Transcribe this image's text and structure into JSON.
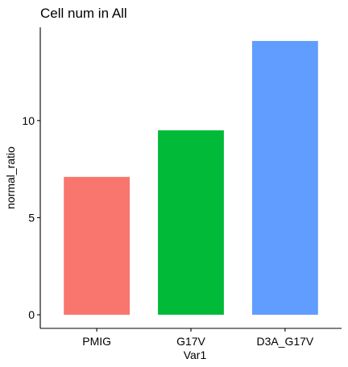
{
  "chart_data": {
    "type": "bar",
    "title": "Cell num in All",
    "xlabel": "Var1",
    "ylabel": "normal_ratio",
    "categories": [
      "PMIG",
      "G17V",
      "D3A_G17V"
    ],
    "values": [
      7.1,
      9.5,
      14.1
    ],
    "colors": [
      "#F8766D",
      "#00BA38",
      "#619CFF"
    ],
    "yticks": [
      0,
      5,
      10
    ],
    "ylim": [
      -0.7,
      14.8
    ],
    "grid": false,
    "legend": "none"
  }
}
